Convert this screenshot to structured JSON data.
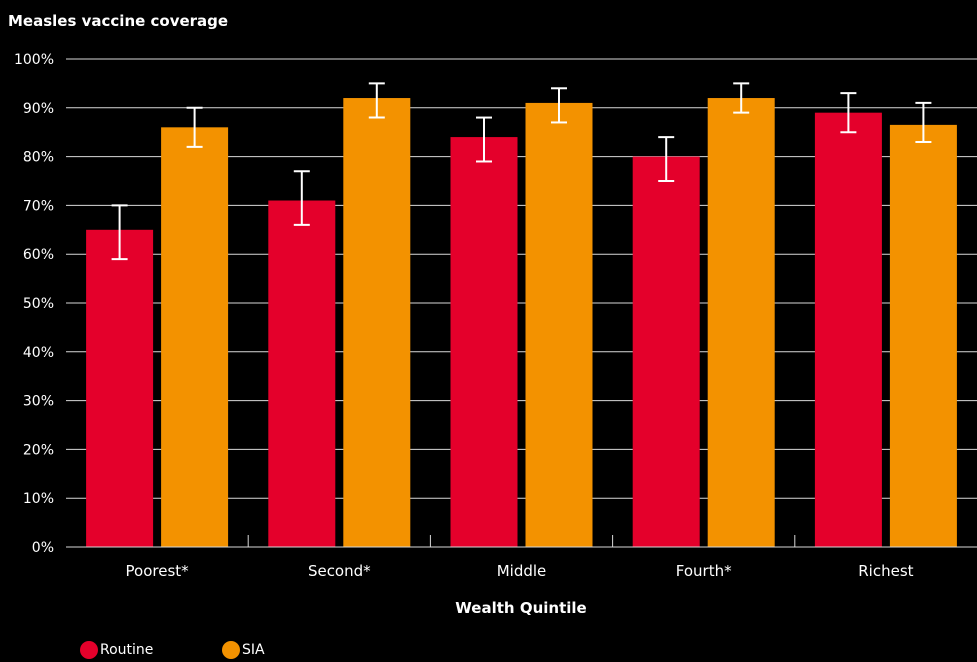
{
  "chart_data": {
    "type": "bar",
    "title": "Measles vaccine coverage",
    "xlabel": "Wealth Quintile",
    "ylabel": "",
    "categories": [
      "Poorest*",
      "Second*",
      "Middle",
      "Fourth*",
      "Richest"
    ],
    "ylim": [
      0,
      100
    ],
    "yticks": [
      "0%",
      "10%",
      "20%",
      "30%",
      "40%",
      "50%",
      "60%",
      "70%",
      "80%",
      "90%",
      "100%"
    ],
    "grid": true,
    "legend_position": "bottom-left",
    "series": [
      {
        "name": "Routine",
        "color": "#e4002b",
        "values": [
          65,
          71,
          84,
          80,
          89
        ],
        "error_low": [
          59,
          66,
          79,
          75,
          85
        ],
        "error_high": [
          70,
          77,
          88,
          84,
          93
        ]
      },
      {
        "name": "SIA",
        "color": "#f39200",
        "values": [
          86,
          92,
          91,
          92,
          86.5
        ],
        "error_low": [
          82,
          88,
          87,
          89,
          83
        ],
        "error_high": [
          90,
          95,
          94,
          95,
          91
        ]
      }
    ]
  }
}
